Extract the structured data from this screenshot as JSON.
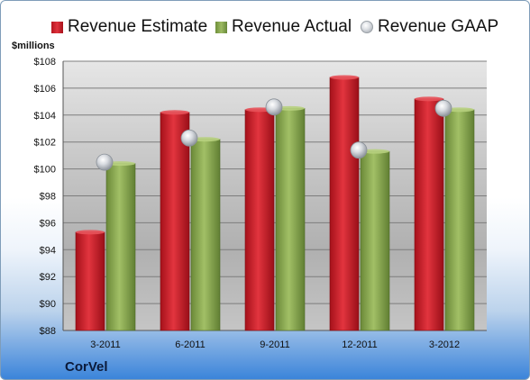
{
  "chart_data": {
    "type": "bar",
    "ylabel": "$millions",
    "ylim": [
      88,
      108
    ],
    "y_ticks": [
      "$88",
      "$90",
      "$92",
      "$94",
      "$96",
      "$98",
      "$100",
      "$102",
      "$104",
      "$106",
      "$108"
    ],
    "y_tick_values": [
      88,
      90,
      92,
      94,
      96,
      98,
      100,
      102,
      104,
      106,
      108
    ],
    "categories": [
      "3-2011",
      "6-2011",
      "9-2011",
      "12-2011",
      "3-2012"
    ],
    "series": [
      {
        "name": "Revenue Estimate",
        "kind": "bar",
        "color": "#cf1f2a",
        "values": [
          95.3,
          104.2,
          104.4,
          106.8,
          105.2
        ]
      },
      {
        "name": "Revenue Actual",
        "kind": "bar",
        "color": "#8caa52",
        "values": [
          100.4,
          102.2,
          104.5,
          101.3,
          104.4
        ]
      },
      {
        "name": "Revenue GAAP",
        "kind": "marker",
        "color": "#c8ccd2",
        "values": [
          100.5,
          102.3,
          104.6,
          101.4,
          104.5
        ]
      }
    ],
    "legend_position": "top",
    "grid": true
  },
  "footer": {
    "company": "CorVel"
  }
}
